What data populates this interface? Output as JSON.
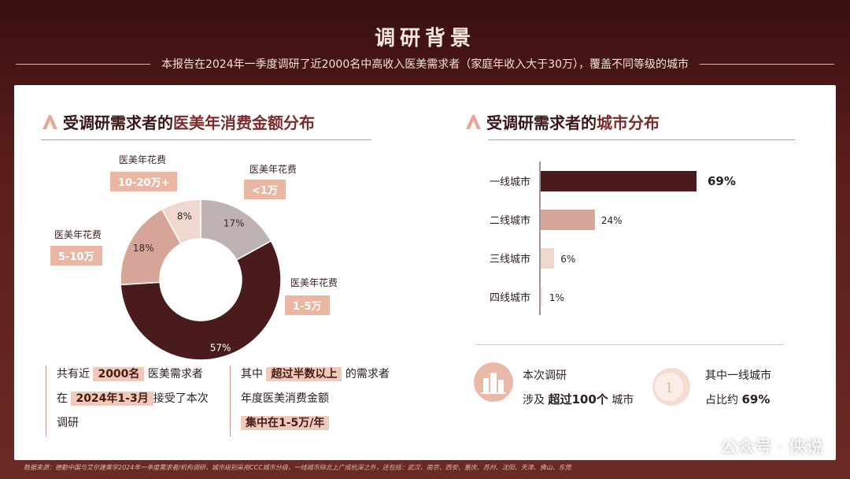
{
  "page": {
    "title": "调研背景",
    "subtitle": "本报告在2024年一季度调研了近2000名中高收入医美需求者（家庭年收入大于30万），覆盖不同等级的城市"
  },
  "left_section": {
    "title_plain": "受调研需求者的",
    "title_accent": "医美年消费金额分布",
    "slice_caption": "医美年花费",
    "desc_left": {
      "p1": "共有近",
      "h1": "2000名",
      "p2": "医美需求者",
      "p3": "在",
      "h2": "2024年1-3月",
      "p4": "接受了本次",
      "p5": "调研"
    },
    "desc_right": {
      "p1": "其中",
      "h1": "超过半数以上",
      "p2": "的需求者",
      "p3": "年度医美消费金额",
      "h2": "集中在1-5万/年"
    }
  },
  "right_section": {
    "title_plain": "受调研需求者的",
    "title_accent": "城市分布",
    "stat1": {
      "l1": "本次调研",
      "pre": "涉及",
      "bold": "超过100个",
      "post": "城市"
    },
    "stat2": {
      "l1": "其中一线城市",
      "pre": "占比约",
      "bold": "69%"
    },
    "circle_number": "1"
  },
  "chart_data": [
    {
      "type": "pie",
      "title": "受调研需求者的医美年消费金额分布",
      "slices": [
        {
          "label": "<1万",
          "value": 17,
          "color": "#bfb3b1"
        },
        {
          "label": "1-5万",
          "value": 57,
          "color": "#4a1b1d"
        },
        {
          "label": "5-10万",
          "value": 18,
          "color": "#d6a597"
        },
        {
          "label": "10-20万+",
          "value": 8,
          "color": "#f1d8ce"
        }
      ],
      "value_suffix": "%"
    },
    {
      "type": "bar",
      "orientation": "horizontal",
      "title": "受调研需求者的城市分布",
      "categories": [
        "一线城市",
        "二线城市",
        "三线城市",
        "四线城市"
      ],
      "values": [
        69,
        24,
        6,
        1
      ],
      "value_suffix": "%",
      "colors": [
        "#4a1b1d",
        "#d6a597",
        "#f1d8ce",
        "#f7ebe6"
      ],
      "xlim": [
        0,
        69
      ]
    }
  ],
  "footnote": "数据来源：德勤中国与艾尔建美学2024年一季度需求者/机构调研，城市级别采用CCC城市分级，一线城市除北上广成杭深之外，还包括：武汉、南京、西安、重庆、苏州、沈阳、天津、佛山、东莞",
  "watermark": "公众号 · 侠说"
}
